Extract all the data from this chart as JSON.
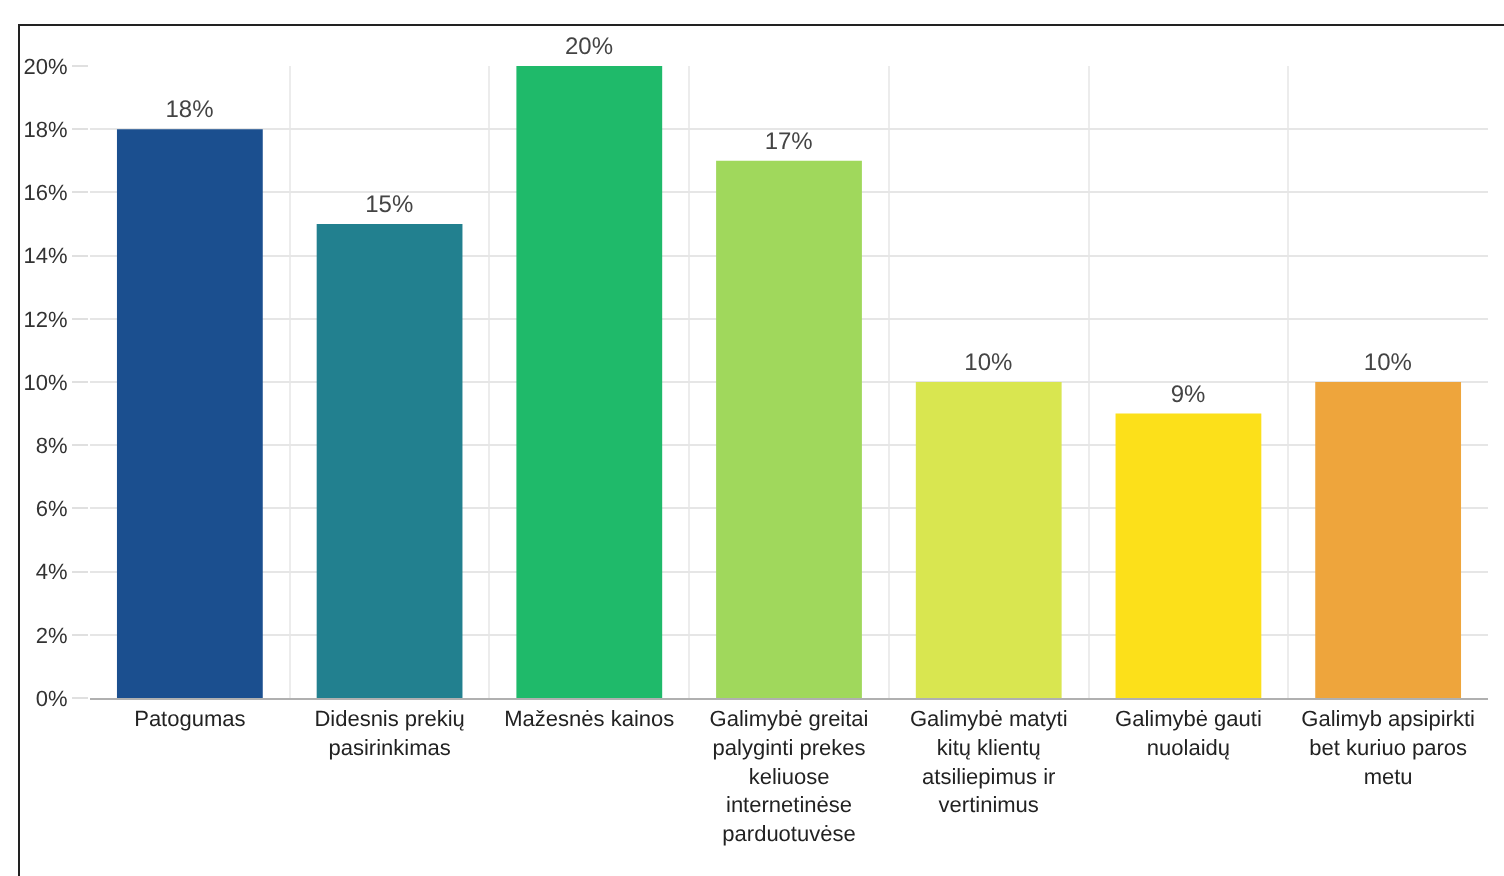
{
  "chart_data": {
    "type": "bar",
    "categories": [
      "Patogumas",
      "Didesnis prekių pasirinkimas",
      "Mažesnės kainos",
      "Galimybė greitai palyginti prekes keliuose internetinėse parduotuvėse",
      "Galimybė matyti kitų klientų atsiliepimus ir vertinimus",
      "Galimybė gauti nuolaidų",
      "Galimyb apsipirkti bet kuriuo paros metu"
    ],
    "values": [
      18,
      15,
      20,
      17,
      10,
      9,
      10
    ],
    "colors": [
      "#1b4f8f",
      "#22808f",
      "#1fba6a",
      "#a0d85c",
      "#d9e650",
      "#fce01a",
      "#eea53c"
    ],
    "value_labels": [
      "18%",
      "15%",
      "20%",
      "17%",
      "10%",
      "9%",
      "10%"
    ],
    "ylim": [
      0,
      20
    ],
    "yticks": [
      {
        "value": 0,
        "label": "0%"
      },
      {
        "value": 2,
        "label": "2%"
      },
      {
        "value": 4,
        "label": "4%"
      },
      {
        "value": 6,
        "label": "6%"
      },
      {
        "value": 8,
        "label": "8%"
      },
      {
        "value": 10,
        "label": "10%"
      },
      {
        "value": 12,
        "label": "12%"
      },
      {
        "value": 14,
        "label": "14%"
      },
      {
        "value": 16,
        "label": "16%"
      },
      {
        "value": 18,
        "label": "18%"
      },
      {
        "value": 20,
        "label": "20%"
      }
    ],
    "grid": true
  }
}
